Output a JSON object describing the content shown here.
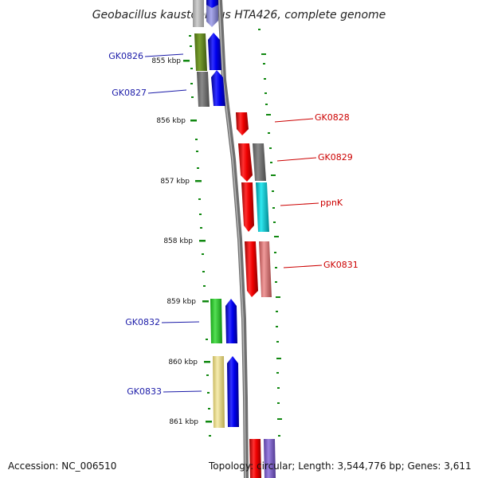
{
  "title": "Geobacillus kaustophilus HTA426, complete genome",
  "accession": "Accession: NC_006510",
  "topology": "Topology: circular; Length: 3,544,776 bp; Genes: 3,611",
  "ticks": [
    "855 kbp",
    "856 kbp",
    "857 kbp",
    "858 kbp",
    "859 kbp",
    "860 kbp",
    "861 kbp"
  ],
  "genes": [
    {
      "label": "GK0826",
      "strand": "left",
      "color": "#1a1aa8"
    },
    {
      "label": "GK0827",
      "strand": "left",
      "color": "#1a1aa8"
    },
    {
      "label": "GK0828",
      "strand": "right",
      "color": "#cc0000"
    },
    {
      "label": "GK0829",
      "strand": "right",
      "color": "#cc0000"
    },
    {
      "label": "ppnK",
      "strand": "right",
      "color": "#cc0000"
    },
    {
      "label": "GK0831",
      "strand": "right",
      "color": "#cc0000"
    },
    {
      "label": "GK0832",
      "strand": "left",
      "color": "#1a1aa8"
    },
    {
      "label": "GK0833",
      "strand": "left",
      "color": "#1a1aa8"
    }
  ],
  "colors": {
    "forward_gene": "#0000ee",
    "reverse_gene": "#ee0000",
    "backbone": "#888888",
    "tick": "#118811"
  }
}
